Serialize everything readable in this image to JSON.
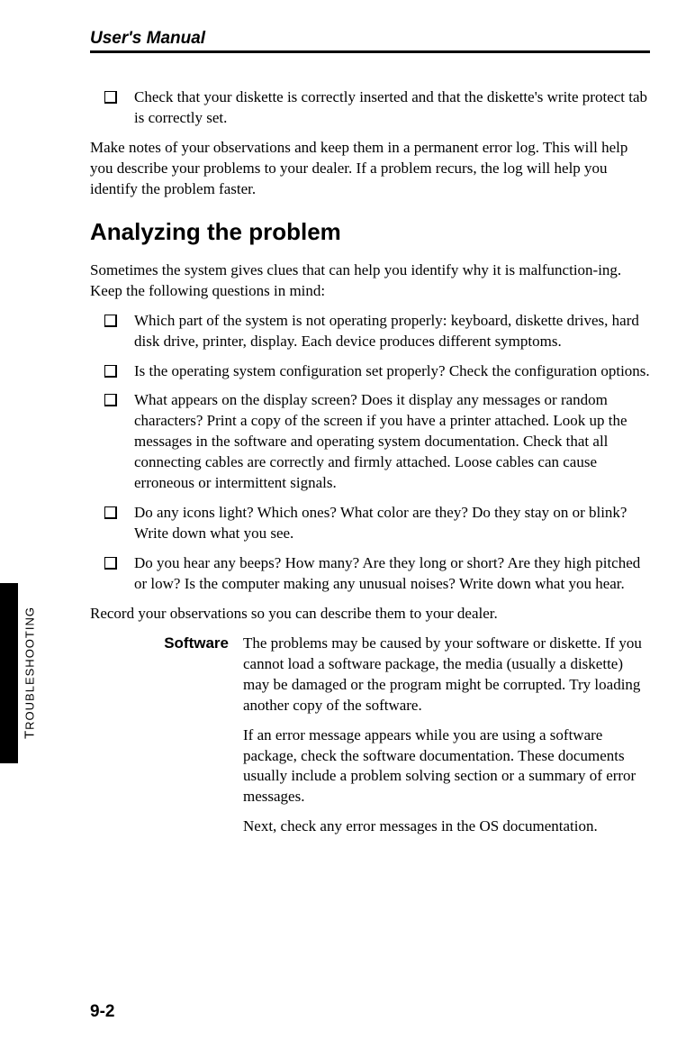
{
  "header": "User's Manual",
  "sideTab": {
    "label": "TROUBLESHOOTING"
  },
  "bullets1": [
    "Check that your diskette is correctly inserted and that the diskette's write protect tab is correctly set."
  ],
  "para1": "Make notes of your observations and keep them in a permanent error log. This will help you describe your problems to your dealer. If a problem recurs, the log will help you identify the problem faster.",
  "heading1": "Analyzing the problem",
  "para2": "Sometimes the system gives clues that can help you identify why it is malfunction-ing. Keep the following questions in mind:",
  "bullets2": [
    "Which part of the system is not operating properly: keyboard, diskette drives, hard disk drive, printer, display. Each device produces different symptoms.",
    "Is the operating system configuration set properly? Check the configuration options.",
    "What appears on the display screen? Does it display any messages or random characters? Print a copy of the screen if you have a printer attached. Look up the messages in the software and operating system documentation. Check that all connecting cables are correctly and firmly attached. Loose cables can cause erroneous or intermittent signals.",
    "Do any icons light? Which ones? What color are they? Do they stay on or blink? Write down what you see.",
    "Do you hear any beeps? How many? Are they long or short? Are they high pitched or low? Is the computer making any unusual noises? Write down what you hear."
  ],
  "para3": "Record your observations so you can describe them to your dealer.",
  "definition": {
    "term": "Software",
    "paragraphs": [
      "The problems may be caused by your software or diskette. If you cannot load a software package, the media (usually a diskette) may be damaged or the program might be corrupted. Try loading another copy of the software.",
      "If an error message appears while you are using a software package, check the software documentation. These documents usually include a problem solving section or a summary of error messages.",
      "Next, check any error messages in the OS documentation."
    ]
  },
  "pageNumber": "9-2"
}
